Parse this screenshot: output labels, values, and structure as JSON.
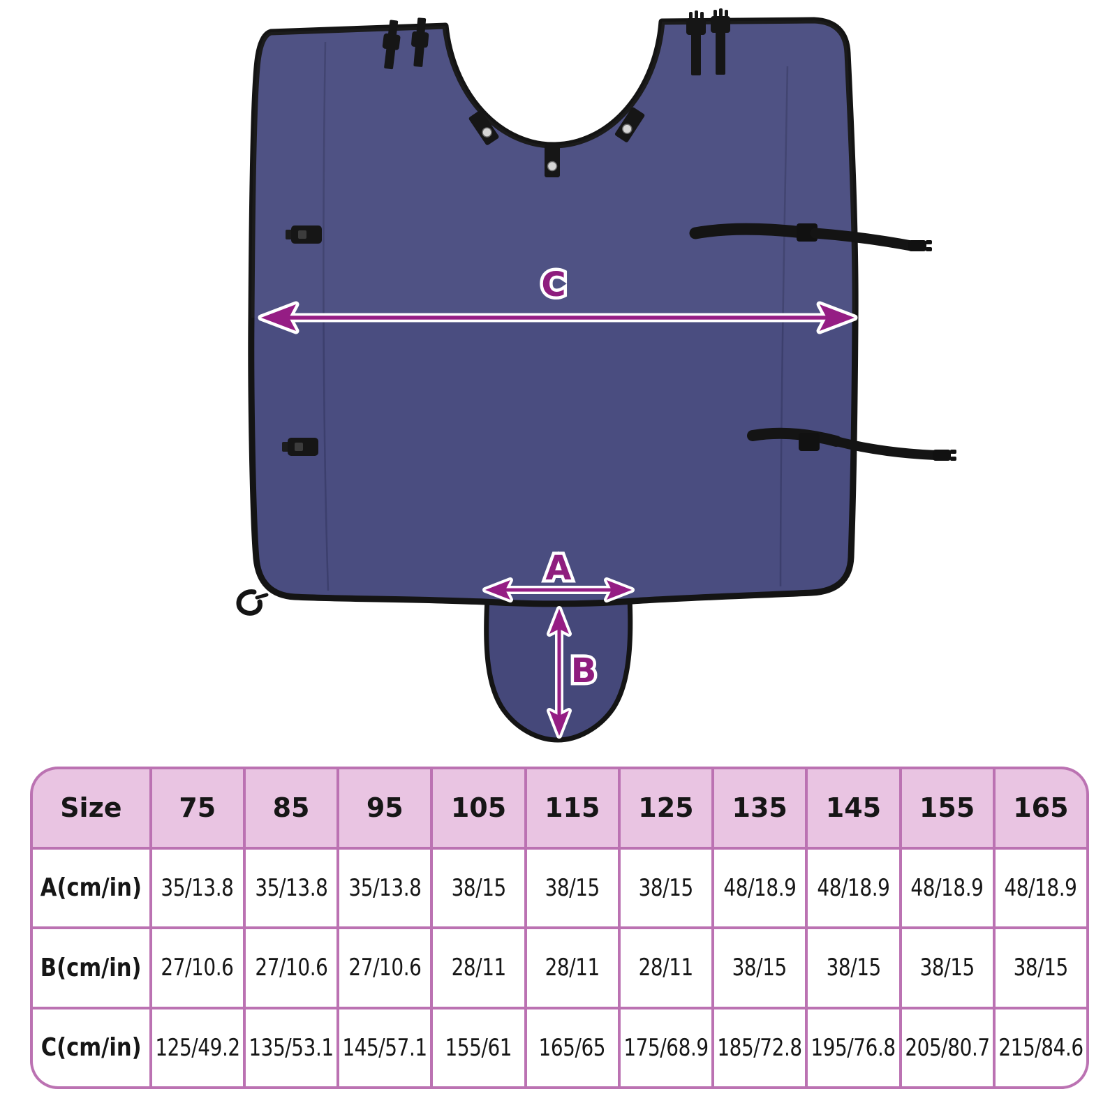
{
  "page": {
    "description": "Product size diagram of a navy blue cover with tail flap, straps and buckles, with dimension arrows and a sizing table"
  },
  "diagram": {
    "labels": {
      "a": "A",
      "b": "B",
      "c": "C"
    },
    "colors": {
      "fabric": "#4a4d80",
      "fabric_dark": "#45487a",
      "trim": "#141414",
      "arrow": "#951d84",
      "label": "#8e1d7e",
      "snap": "#d6d6d6"
    },
    "icons": [
      "buckle-icon",
      "strap-icon",
      "snap-tab-icon",
      "zipper-pull-icon",
      "dimension-arrow-icon"
    ]
  },
  "table": {
    "header": [
      "Size",
      "75",
      "85",
      "95",
      "105",
      "115",
      "125",
      "135",
      "145",
      "155",
      "165"
    ],
    "rows": [
      {
        "label": "A(cm/in)",
        "values": [
          "35/13.8",
          "35/13.8",
          "35/13.8",
          "38/15",
          "38/15",
          "38/15",
          "48/18.9",
          "48/18.9",
          "48/18.9",
          "48/18.9"
        ]
      },
      {
        "label": "B(cm/in)",
        "values": [
          "27/10.6",
          "27/10.6",
          "27/10.6",
          "28/11",
          "28/11",
          "28/11",
          "38/15",
          "38/15",
          "38/15",
          "38/15"
        ]
      },
      {
        "label": "C(cm/in)",
        "values": [
          "125/49.2",
          "135/53.1",
          "145/57.1",
          "155/61",
          "165/65",
          "175/68.9",
          "185/72.8",
          "195/76.8",
          "205/80.7",
          "215/84.6"
        ]
      }
    ],
    "colors": {
      "header_bg": "#e9c4e2",
      "border": "#bb72b2",
      "cell_bg": "#ffffff",
      "text": "#161616"
    }
  }
}
